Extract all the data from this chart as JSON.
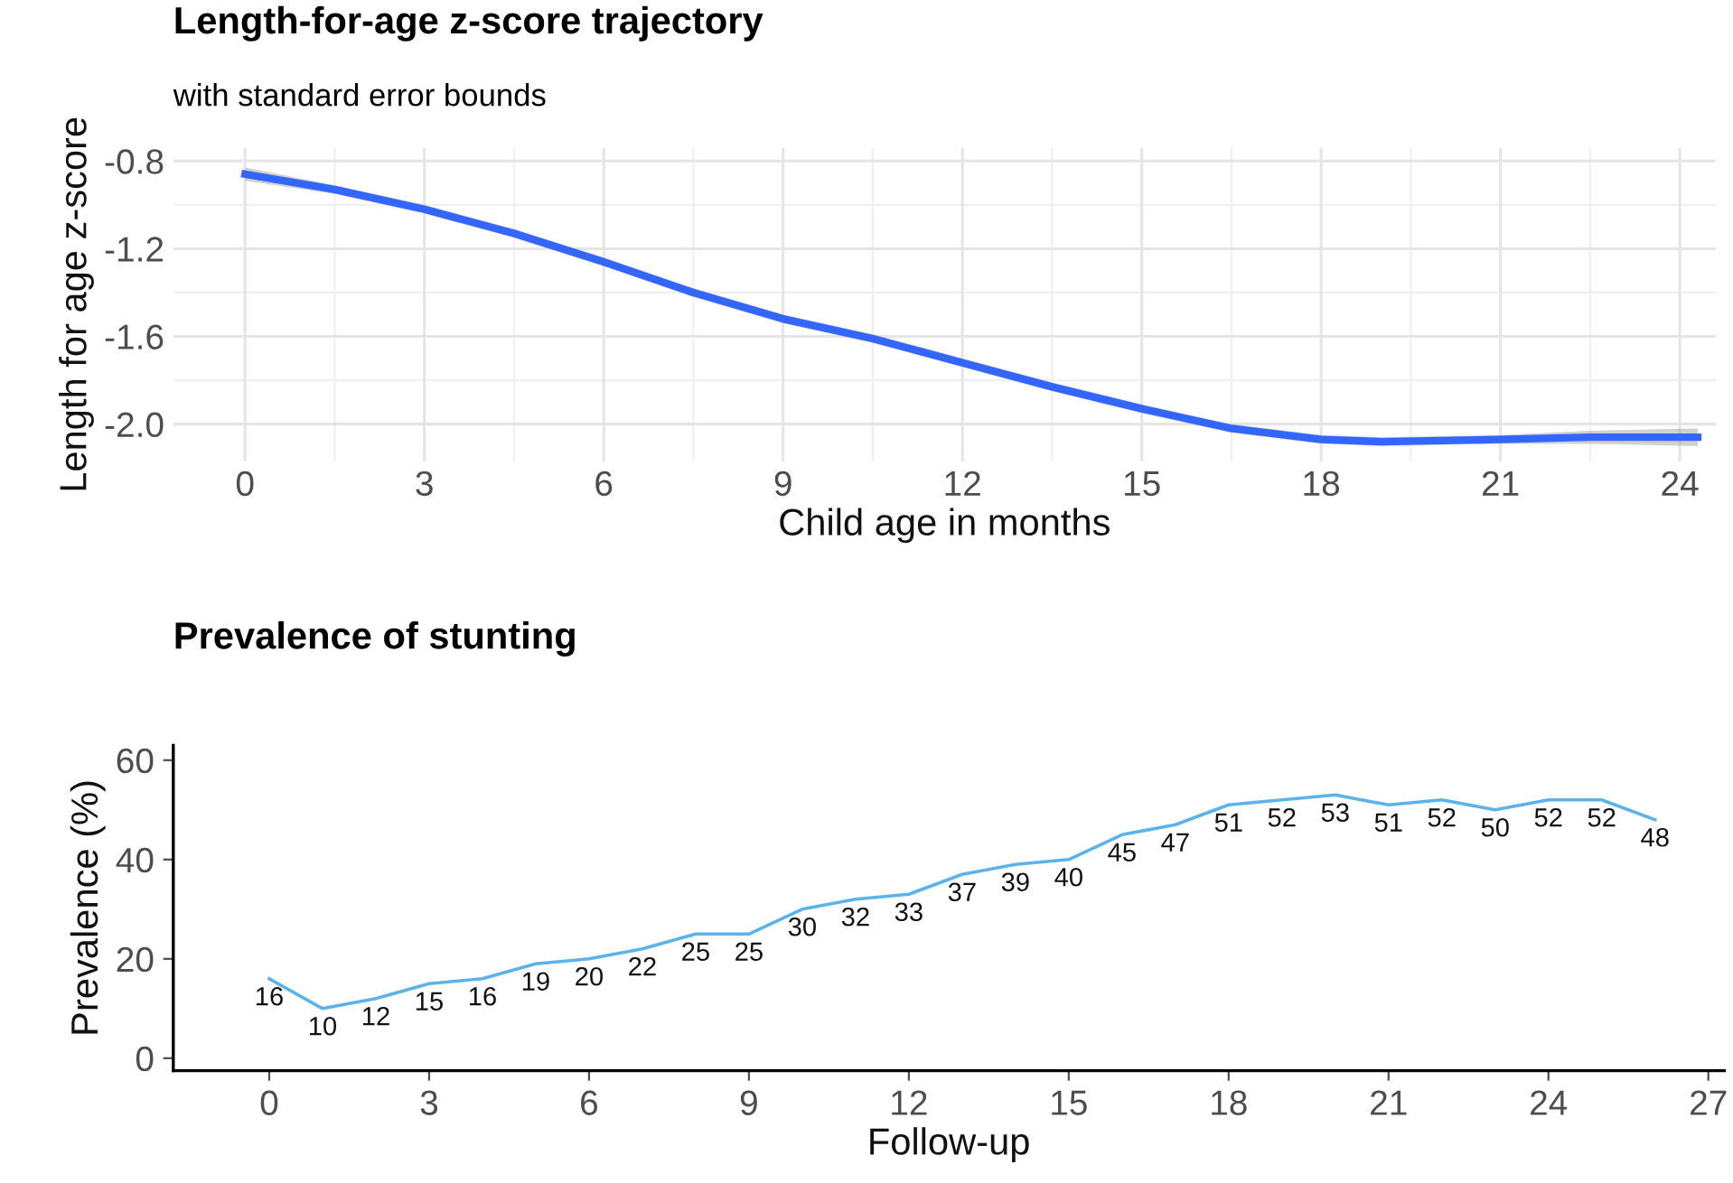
{
  "chart_data": [
    {
      "type": "line",
      "title": "Length-for-age z-score trajectory",
      "subtitle": "with standard error bounds",
      "xlabel": "Child age in months",
      "ylabel": "Length for age z-score",
      "series": [
        {
          "color": "#3366ff",
          "x": [
            0,
            1.5,
            3,
            4.5,
            6,
            7.5,
            9,
            10.5,
            12,
            13.5,
            15,
            16.5,
            18,
            19,
            21,
            22.5,
            24.3
          ],
          "values": [
            -0.86,
            -0.93,
            -1.02,
            -1.13,
            -1.26,
            -1.4,
            -1.52,
            -1.61,
            -1.72,
            -1.83,
            -1.93,
            -2.02,
            -2.07,
            -2.08,
            -2.07,
            -2.06,
            -2.06
          ],
          "lower": [
            -0.89,
            -0.95,
            -1.04,
            -1.15,
            -1.28,
            -1.42,
            -1.54,
            -1.63,
            -1.74,
            -1.85,
            -1.95,
            -2.04,
            -2.09,
            -2.1,
            -2.09,
            -2.09,
            -2.1
          ],
          "upper": [
            -0.83,
            -0.91,
            -1.0,
            -1.11,
            -1.24,
            -1.38,
            -1.5,
            -1.59,
            -1.7,
            -1.81,
            -1.91,
            -2.0,
            -2.05,
            -2.06,
            -2.05,
            -2.03,
            -2.02
          ]
        }
      ],
      "xlim": [
        -1.2,
        24.6
      ],
      "xticks": [
        0,
        3,
        6,
        9,
        12,
        15,
        18,
        21,
        24
      ],
      "ylim": [
        -2.17,
        -0.74
      ],
      "yticks": [
        {
          "value": -2,
          "label": "-2.0"
        },
        {
          "value": -1.6,
          "label": "-1.6"
        },
        {
          "value": -1.2,
          "label": "-1.2"
        },
        {
          "value": -0.8,
          "label": "-0.8"
        }
      ],
      "grid": true,
      "line_style": "solid",
      "marker": "none"
    },
    {
      "type": "line",
      "title": "Prevalence of stunting",
      "xlabel": "Follow-up",
      "ylabel": "Prevalence (%)",
      "x": [
        0,
        1,
        2,
        3,
        4,
        5,
        6,
        7,
        8,
        9,
        10,
        11,
        12,
        13,
        14,
        15,
        16,
        17,
        18,
        19,
        20,
        21,
        22,
        23,
        24,
        25,
        26
      ],
      "series": [
        {
          "color": "#5cb3ea",
          "values": [
            16,
            10,
            12,
            15,
            16,
            19,
            20,
            22,
            25,
            25,
            30,
            32,
            33,
            37,
            39,
            40,
            45,
            47,
            51,
            52,
            53,
            51,
            52,
            50,
            52,
            52,
            48
          ]
        }
      ],
      "data_labels": true,
      "xlim": [
        -1.8,
        27.3
      ],
      "xticks": [
        0,
        3,
        6,
        9,
        12,
        15,
        18,
        21,
        24,
        27
      ],
      "ylim": [
        -2.5,
        63
      ],
      "yticks": [
        0,
        20,
        40,
        60
      ],
      "grid": false,
      "line_style": "solid",
      "marker": "none"
    }
  ]
}
